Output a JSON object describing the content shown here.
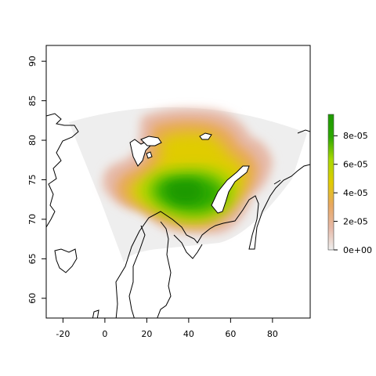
{
  "chart_data": {
    "type": "heatmap",
    "title": "",
    "xlabel": "",
    "ylabel": "",
    "xlim": [
      -28,
      98
    ],
    "ylim": [
      57.5,
      92
    ],
    "x_ticks": [
      -20,
      0,
      20,
      40,
      60,
      80
    ],
    "y_ticks": [
      60,
      65,
      70,
      75,
      80,
      85,
      90
    ],
    "x_tick_labels": [
      "-20",
      "0",
      "20",
      "40",
      "60",
      "80"
    ],
    "y_tick_labels": [
      "60",
      "65",
      "70",
      "75",
      "80",
      "85",
      "90"
    ],
    "grid": false,
    "projection_region_color": "#eeeeee",
    "density_peak": {
      "lon": 35,
      "lat": 73,
      "value": 9.5e-05
    },
    "legend": {
      "placement": "right",
      "min": 0,
      "max": 9.5e-05,
      "ticks": [
        0,
        2e-05,
        4e-05,
        6e-05,
        8e-05
      ],
      "tick_labels": [
        "0e+00",
        "2e-05",
        "4e-05",
        "6e-05",
        "8e-05"
      ],
      "colors": [
        "#eeeeee",
        "#e6b8a6",
        "#e8a860",
        "#e0cc00",
        "#a8d800",
        "#2ca800",
        "#1e9a00"
      ]
    }
  }
}
